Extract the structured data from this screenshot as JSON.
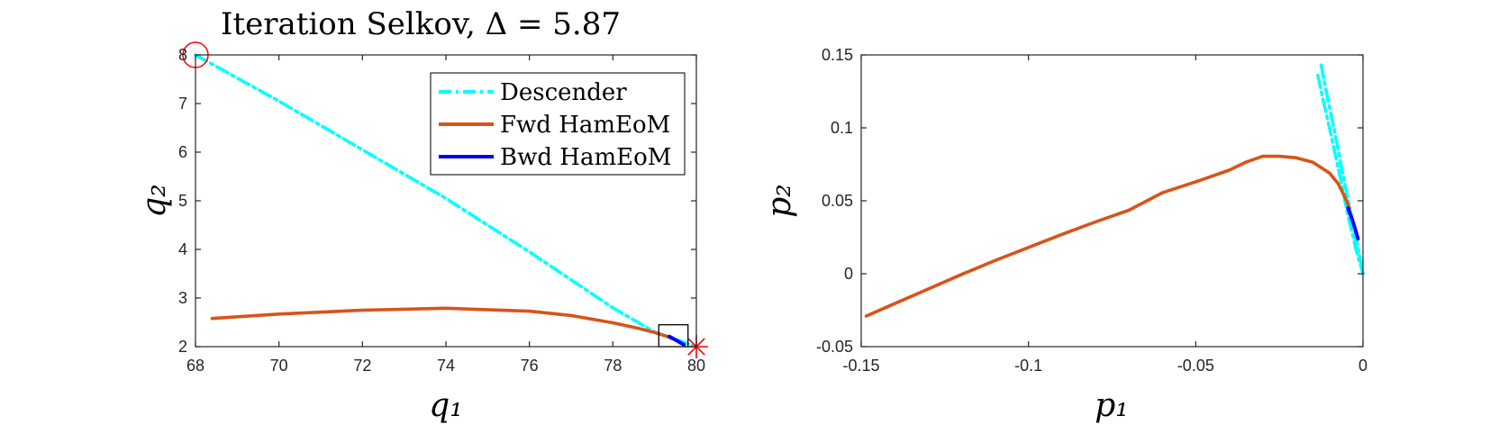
{
  "chart_data": [
    {
      "type": "line",
      "title": "Iteration Selkov, Δ = 5.87",
      "xlabel": "q₁",
      "ylabel": "q₂",
      "xlim": [
        68,
        80
      ],
      "ylim": [
        2,
        8
      ],
      "xticks": [
        "68",
        "70",
        "72",
        "74",
        "76",
        "78",
        "80"
      ],
      "yticks": [
        "2",
        "3",
        "4",
        "5",
        "6",
        "7",
        "8"
      ],
      "grid": false,
      "legend_position": "top-right",
      "series": [
        {
          "name": "Descender",
          "color": "#00FFFF",
          "style": "dash-dot",
          "x": [
            68.0,
            70.0,
            72.0,
            74.0,
            76.0,
            78.0,
            79.0,
            79.6,
            80.0
          ],
          "y": [
            8.0,
            7.05,
            6.05,
            5.05,
            3.95,
            2.8,
            2.3,
            2.12,
            2.0
          ]
        },
        {
          "name": "Fwd HamEoM",
          "color": "#D95319",
          "style": "solid",
          "x": [
            68.4,
            70.0,
            72.0,
            74.0,
            76.0,
            77.0,
            78.0,
            78.6,
            79.0,
            79.3,
            79.55
          ],
          "y": [
            2.58,
            2.67,
            2.75,
            2.79,
            2.73,
            2.64,
            2.49,
            2.38,
            2.29,
            2.21,
            2.12
          ]
        },
        {
          "name": "Bwd HamEoM",
          "color": "#0000FF",
          "style": "solid",
          "x": [
            79.35,
            79.5,
            79.62,
            79.7
          ],
          "y": [
            2.21,
            2.14,
            2.08,
            2.04
          ]
        }
      ],
      "markers": [
        {
          "kind": "circle",
          "color": "#FF0000",
          "x": 68.0,
          "y": 8.0
        },
        {
          "kind": "asterisk",
          "color": "#FF0000",
          "x": 80.0,
          "y": 2.0
        },
        {
          "kind": "box",
          "color": "#000000",
          "x": [
            79.1,
            79.8
          ],
          "y": [
            2.0,
            2.45
          ]
        }
      ]
    },
    {
      "type": "line",
      "xlabel": "p₁",
      "ylabel": "p₂",
      "xlim": [
        -0.15,
        0
      ],
      "ylim": [
        -0.05,
        0.15
      ],
      "xticks": [
        "-0.15",
        "-0.1",
        "-0.05",
        "0"
      ],
      "yticks": [
        "-0.05",
        "0",
        "0.05",
        "0.1",
        "0.15"
      ],
      "grid": false,
      "series": [
        {
          "color": "#00FFFF",
          "style": "dash-dot",
          "x": [
            -0.0125,
            -0.011,
            -0.0085,
            -0.006,
            -0.0035,
            -0.0015,
            0.0
          ],
          "y": [
            0.143,
            0.125,
            0.098,
            0.068,
            0.04,
            0.018,
            0.0
          ]
        },
        {
          "color": "#00FFFF",
          "style": "dash-dot",
          "x": [
            -0.0135,
            -0.012,
            -0.0095,
            -0.007,
            -0.0045,
            -0.002,
            0.0
          ],
          "y": [
            0.136,
            0.12,
            0.095,
            0.068,
            0.04,
            0.016,
            0.0
          ]
        },
        {
          "color": "#D95319",
          "style": "solid",
          "x": [
            -0.1485,
            -0.14,
            -0.13,
            -0.12,
            -0.11,
            -0.1,
            -0.09,
            -0.08,
            -0.07,
            -0.06,
            -0.05,
            -0.04,
            -0.035,
            -0.03,
            -0.025,
            -0.02,
            -0.015,
            -0.01,
            -0.0075,
            -0.0055,
            -0.004
          ],
          "y": [
            -0.029,
            -0.0205,
            -0.0105,
            -0.0005,
            0.009,
            0.018,
            0.027,
            0.0355,
            0.0435,
            0.0555,
            0.063,
            0.071,
            0.0765,
            0.0805,
            0.0805,
            0.0795,
            0.0765,
            0.069,
            0.062,
            0.053,
            0.045
          ]
        },
        {
          "color": "#0000FF",
          "style": "solid",
          "x": [
            -0.0045,
            -0.0035,
            -0.0025,
            -0.0015
          ],
          "y": [
            0.045,
            0.039,
            0.032,
            0.024
          ]
        }
      ]
    }
  ]
}
